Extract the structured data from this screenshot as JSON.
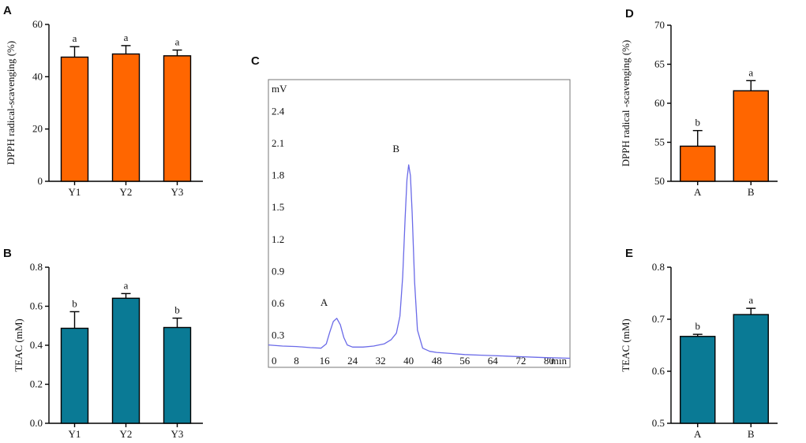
{
  "colors": {
    "orange": "#ff6600",
    "teal": "#0a7a95",
    "trace": "#6a6ae8",
    "axis": "#000000"
  },
  "chart_data": [
    {
      "id": "A",
      "type": "bar",
      "panel_label": "A",
      "categories": [
        "Y1",
        "Y2",
        "Y3"
      ],
      "values": [
        47.5,
        48.7,
        48.0
      ],
      "errors": [
        4.0,
        3.2,
        2.2
      ],
      "significance": [
        "a",
        "a",
        "a"
      ],
      "ylabel": "DPPH radical-scavenging (%)",
      "ylim": [
        0,
        60
      ],
      "yticks": [
        0,
        20,
        40,
        60
      ],
      "color": "orange"
    },
    {
      "id": "B",
      "type": "bar",
      "panel_label": "B",
      "categories": [
        "Y1",
        "Y2",
        "Y3"
      ],
      "values": [
        0.487,
        0.641,
        0.491
      ],
      "errors": [
        0.085,
        0.024,
        0.048
      ],
      "significance": [
        "b",
        "a",
        "b"
      ],
      "ylabel": "TEAC (mM)",
      "ylim": [
        0,
        0.8
      ],
      "yticks": [
        "0.0",
        "0.2",
        "0.4",
        "0.6",
        "0.8"
      ],
      "color": "teal"
    },
    {
      "id": "C",
      "type": "line",
      "panel_label": "C",
      "xlabel": "min",
      "ylabel": "mV",
      "xlim": [
        0,
        86
      ],
      "ylim": [
        0,
        2.7
      ],
      "xticks": [
        "0",
        "8",
        "16",
        "24",
        "32",
        "40",
        "48",
        "56",
        "64",
        "72",
        "80"
      ],
      "yticks": [
        "0.3",
        "0.6",
        "0.9",
        "1.2",
        "1.5",
        "1.8",
        "2.1",
        "2.4"
      ],
      "peaks": [
        {
          "label": "A",
          "x": 19.5,
          "y": 0.46
        },
        {
          "label": "B",
          "x": 40.0,
          "y": 1.9
        }
      ],
      "x": [
        0,
        4,
        8,
        12,
        15,
        16.5,
        17.5,
        18.5,
        19.5,
        20.5,
        21.5,
        22.5,
        24,
        27,
        30,
        33,
        35,
        36.5,
        37.5,
        38.3,
        39,
        39.5,
        40,
        40.5,
        41,
        41.7,
        42.5,
        44,
        46,
        48,
        52,
        56,
        60,
        64,
        68,
        72,
        76,
        80,
        86
      ],
      "y": [
        0.21,
        0.2,
        0.195,
        0.185,
        0.18,
        0.22,
        0.33,
        0.43,
        0.46,
        0.4,
        0.28,
        0.21,
        0.19,
        0.19,
        0.2,
        0.22,
        0.26,
        0.32,
        0.48,
        0.85,
        1.4,
        1.76,
        1.9,
        1.8,
        1.45,
        0.8,
        0.35,
        0.18,
        0.15,
        0.14,
        0.13,
        0.12,
        0.115,
        0.11,
        0.105,
        0.1,
        0.095,
        0.09,
        0.085
      ],
      "color": "trace"
    },
    {
      "id": "D",
      "type": "bar",
      "panel_label": "D",
      "categories": [
        "A",
        "B"
      ],
      "values": [
        54.5,
        61.6
      ],
      "errors": [
        2.0,
        1.3
      ],
      "significance": [
        "b",
        "a"
      ],
      "ylabel": "DPPH radical -scavenging (%)",
      "ylim": [
        50,
        70
      ],
      "yticks": [
        50,
        55,
        60,
        65,
        70
      ],
      "color": "orange"
    },
    {
      "id": "E",
      "type": "bar",
      "panel_label": "E",
      "categories": [
        "A",
        "B"
      ],
      "values": [
        0.667,
        0.709
      ],
      "errors": [
        0.004,
        0.012
      ],
      "significance": [
        "b",
        "a"
      ],
      "ylabel": "TEAC (mM)",
      "ylim": [
        0.5,
        0.8
      ],
      "yticks": [
        "0.5",
        "0.6",
        "0.7",
        "0.8"
      ],
      "color": "teal"
    }
  ]
}
